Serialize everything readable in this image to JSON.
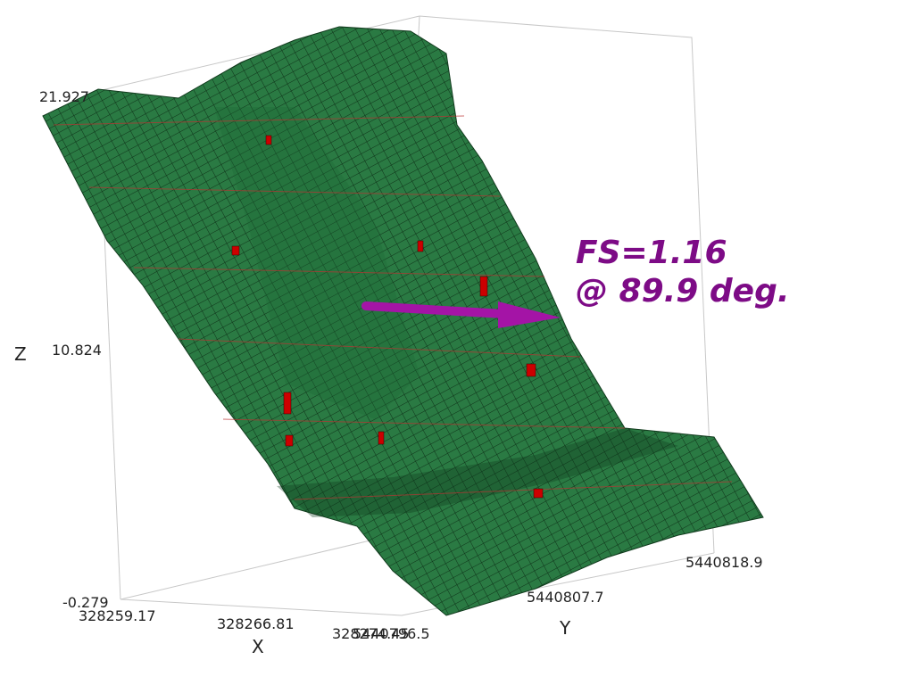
{
  "annotation": {
    "line1": "FS=1.16",
    "line2": "@ 89.9 deg."
  },
  "axes": {
    "z": {
      "title": "Z",
      "ticks": [
        "21.927",
        "10.824",
        "-0.279"
      ]
    },
    "x": {
      "title": "X",
      "ticks": [
        "328259.17",
        "328266.81",
        "328274.45"
      ]
    },
    "y": {
      "title": "Y",
      "ticks": [
        "5440796.5",
        "5440807.7",
        "5440818.9"
      ]
    }
  }
}
